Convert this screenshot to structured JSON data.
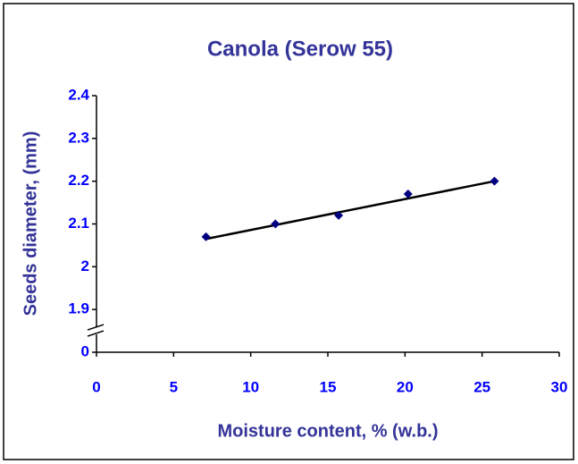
{
  "chart_data": {
    "type": "scatter",
    "title": "Canola (Serow 55)",
    "x_label": "Moisture content, % (w.b.)",
    "y_label": "Seeds diameter, (mm)",
    "x": [
      7.1,
      11.6,
      15.7,
      20.2,
      25.8
    ],
    "values": [
      2.07,
      2.1,
      2.12,
      2.17,
      2.2
    ],
    "color": "#000080",
    "trendline": {
      "x": [
        7.1,
        25.8
      ],
      "values": [
        2.065,
        2.2
      ],
      "color": "#000000"
    },
    "xlim": [
      0,
      30
    ],
    "xticks": [
      0,
      5,
      10,
      15,
      20,
      25,
      30
    ],
    "ylim": [
      0,
      2.4
    ],
    "yticks": [
      0,
      1.9,
      2,
      2.1,
      2.2,
      2.3,
      2.4
    ],
    "ybreak": [
      0,
      1.9
    ]
  }
}
